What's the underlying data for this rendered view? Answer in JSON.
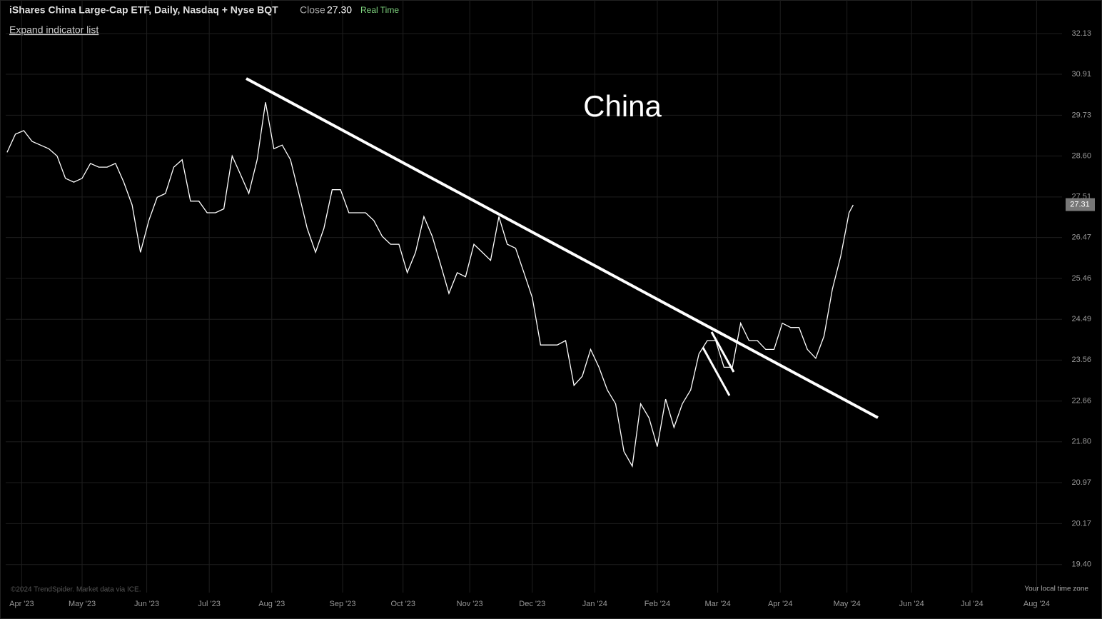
{
  "chart_data": {
    "type": "line",
    "title": "iShares China Large-Cap ETF, Daily, Nasdaq + Nyse BQT",
    "close_label": "Close",
    "close_value": "27.30",
    "status": "Real Time",
    "expand_label": "Expand indicator list",
    "annotation": "China",
    "copyright": "©2024 TrendSpider. Market data via ICE.",
    "timezone_label": "Your local time zone",
    "last_value": 27.31,
    "log_scale": true,
    "grid": true,
    "xlim": [
      -3.4,
      506.2
    ],
    "xticks": [
      {
        "value": 7,
        "label": "Apr '23"
      },
      {
        "value": 36,
        "label": "May '23"
      },
      {
        "value": 67,
        "label": "Jun '23"
      },
      {
        "value": 97,
        "label": "Jul '23"
      },
      {
        "value": 127,
        "label": "Aug '23"
      },
      {
        "value": 161,
        "label": "Sep '23"
      },
      {
        "value": 190,
        "label": "Oct '23"
      },
      {
        "value": 222,
        "label": "Nov '23"
      },
      {
        "value": 252,
        "label": "Dec '23"
      },
      {
        "value": 282,
        "label": "Jan '24"
      },
      {
        "value": 312,
        "label": "Feb '24"
      },
      {
        "value": 341,
        "label": "Mar '24"
      },
      {
        "value": 371,
        "label": "Apr '24"
      },
      {
        "value": 403,
        "label": "May '24"
      },
      {
        "value": 434,
        "label": "Jun '24"
      },
      {
        "value": 463,
        "label": "Jul '24"
      },
      {
        "value": 494,
        "label": "Aug '24"
      }
    ],
    "ylim": [
      18.89,
      33.17
    ],
    "yticks": [
      32.13,
      30.91,
      29.73,
      {
        "value": 28.6,
        "label": "28.60"
      },
      27.51,
      26.47,
      25.46,
      24.49,
      23.56,
      22.66,
      {
        "value": 21.8,
        "label": "21.80"
      },
      20.97,
      20.17,
      {
        "value": 19.4,
        "label": "19.40"
      }
    ],
    "x": [
      0,
      4,
      8,
      12,
      16,
      20,
      24,
      28,
      32,
      36,
      40,
      44,
      48,
      52,
      56,
      60,
      64,
      68,
      72,
      76,
      80,
      84,
      88,
      92,
      96,
      100,
      104,
      108,
      112,
      116,
      120,
      124,
      128,
      132,
      136,
      140,
      144,
      148,
      152,
      156,
      160,
      164,
      168,
      172,
      176,
      180,
      184,
      188,
      192,
      196,
      200,
      204,
      208,
      212,
      216,
      220,
      224,
      228,
      232,
      236,
      240,
      244,
      248,
      252,
      256,
      260,
      264,
      268,
      272,
      276,
      280,
      284,
      288,
      292,
      296,
      300,
      304,
      308,
      312,
      316,
      320,
      324,
      328,
      332,
      336,
      340,
      344,
      348,
      352,
      356,
      360,
      364,
      368,
      372,
      376,
      380,
      384,
      388,
      392,
      396,
      400,
      404,
      406
    ],
    "series": [
      {
        "name": "Close",
        "color": "#ffffff",
        "values": [
          28.7,
          29.2,
          29.3,
          29.0,
          28.9,
          28.8,
          28.6,
          28.0,
          27.9,
          28.0,
          28.4,
          28.3,
          28.3,
          28.4,
          27.9,
          27.3,
          26.1,
          26.9,
          27.5,
          27.6,
          28.3,
          28.5,
          27.4,
          27.4,
          27.1,
          27.1,
          27.2,
          28.6,
          28.1,
          27.6,
          28.5,
          30.1,
          28.8,
          28.9,
          28.5,
          27.6,
          26.7,
          26.1,
          26.7,
          27.7,
          27.7,
          27.1,
          27.1,
          27.1,
          26.9,
          26.5,
          26.3,
          26.3,
          25.6,
          26.1,
          27.0,
          26.5,
          25.8,
          25.1,
          25.6,
          25.5,
          26.3,
          26.1,
          25.9,
          27.0,
          26.3,
          26.2,
          25.6,
          25.0,
          23.9,
          23.9,
          23.9,
          24.0,
          23.0,
          23.2,
          23.8,
          23.4,
          22.9,
          22.6,
          21.6,
          21.3,
          22.6,
          22.3,
          21.7,
          22.7,
          22.1,
          22.6,
          22.9,
          23.7,
          24.0,
          24.0,
          23.4,
          23.4,
          24.4,
          24.0,
          24.0,
          23.8,
          23.8,
          24.4,
          24.3,
          24.3,
          23.8,
          23.6,
          24.1,
          25.2,
          26.0,
          27.1,
          27.3
        ]
      }
    ]
  }
}
